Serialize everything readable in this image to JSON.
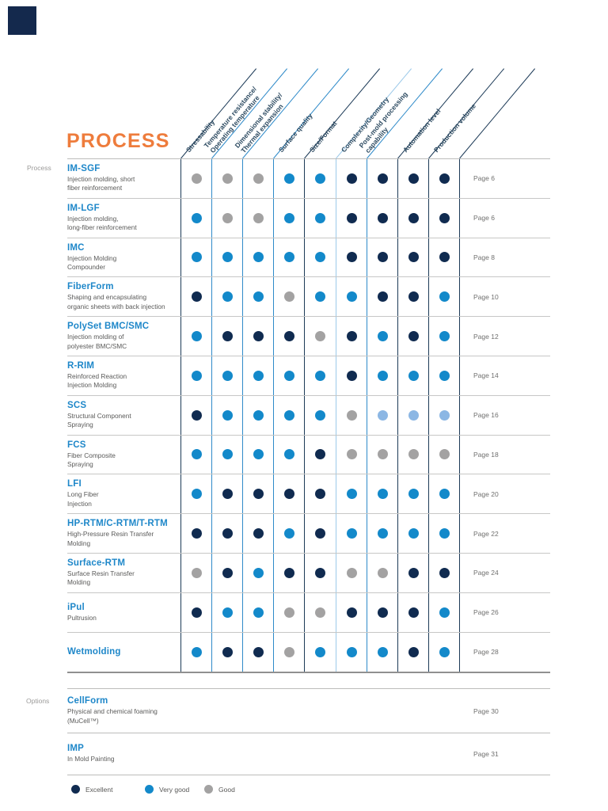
{
  "header": {
    "title": "PROCESS"
  },
  "sections": {
    "process_label": "Process",
    "options_label": "Options"
  },
  "columns": [
    {
      "line1": "Stressability",
      "line2": ""
    },
    {
      "line1": "Temperature resistance/",
      "line2": "Operating temperature"
    },
    {
      "line1": "Dimensional stability/",
      "line2": "Thermal expansion"
    },
    {
      "line1": "Surface quality",
      "line2": ""
    },
    {
      "line1": "Size/Format",
      "line2": ""
    },
    {
      "line1": "Complexity/Geometry",
      "line2": ""
    },
    {
      "line1": "Post-mold processing",
      "line2": "capability"
    },
    {
      "line1": "Automation level",
      "line2": ""
    },
    {
      "line1": "Production volume",
      "line2": ""
    }
  ],
  "colors": {
    "accent_orange": "#ee7c3c",
    "excellent": "#102b50",
    "very_good": "#1389ca",
    "good": "#a3a2a2",
    "fair": "#8cb7e4",
    "title_blue": "#1e87c9",
    "line_dark": "#1c3a57",
    "line_blue": "#2e8ac9",
    "line_light": "#9cc9e9"
  },
  "grid_line_colors": [
    "dark",
    "blue",
    "blue",
    "blue",
    "dark",
    "light",
    "blue",
    "dark",
    "dark",
    "dark"
  ],
  "processes": [
    {
      "name": "IM-SGF",
      "desc": "Injection molding, short\nfiber reinforcement",
      "page": "Page 6",
      "ratings": [
        "good",
        "good",
        "good",
        "very_good",
        "very_good",
        "excellent",
        "excellent",
        "excellent",
        "excellent"
      ]
    },
    {
      "name": "IM-LGF",
      "desc": "Injection molding,\nlong-fiber reinforcement",
      "page": "Page 6",
      "ratings": [
        "very_good",
        "good",
        "good",
        "very_good",
        "very_good",
        "excellent",
        "excellent",
        "excellent",
        "excellent"
      ]
    },
    {
      "name": "IMC",
      "desc": "Injection Molding\nCompounder",
      "page": "Page 8",
      "ratings": [
        "very_good",
        "very_good",
        "very_good",
        "very_good",
        "very_good",
        "excellent",
        "excellent",
        "excellent",
        "excellent"
      ]
    },
    {
      "name": "FiberForm",
      "desc": "Shaping and encapsulating\norganic sheets with back injection",
      "page": "Page 10",
      "ratings": [
        "excellent",
        "very_good",
        "very_good",
        "good",
        "very_good",
        "very_good",
        "excellent",
        "excellent",
        "very_good"
      ]
    },
    {
      "name": "PolySet BMC/SMC",
      "desc": "Injection molding of\npolyester BMC/SMC",
      "page": "Page 12",
      "ratings": [
        "very_good",
        "excellent",
        "excellent",
        "excellent",
        "good",
        "excellent",
        "very_good",
        "excellent",
        "very_good"
      ]
    },
    {
      "name": "R-RIM",
      "desc": "Reinforced Reaction\nInjection Molding",
      "page": "Page 14",
      "ratings": [
        "very_good",
        "very_good",
        "very_good",
        "very_good",
        "very_good",
        "excellent",
        "very_good",
        "very_good",
        "very_good"
      ]
    },
    {
      "name": "SCS",
      "desc": "Structural Component\nSpraying",
      "page": "Page 16",
      "ratings": [
        "excellent",
        "very_good",
        "very_good",
        "very_good",
        "very_good",
        "good",
        "fair",
        "fair",
        "fair"
      ]
    },
    {
      "name": "FCS",
      "desc": "Fiber Composite\nSpraying",
      "page": "Page 18",
      "ratings": [
        "very_good",
        "very_good",
        "very_good",
        "very_good",
        "excellent",
        "good",
        "good",
        "good",
        "good"
      ]
    },
    {
      "name": "LFI",
      "desc": "Long Fiber\nInjection",
      "page": "Page 20",
      "ratings": [
        "very_good",
        "excellent",
        "excellent",
        "excellent",
        "excellent",
        "very_good",
        "very_good",
        "very_good",
        "very_good"
      ]
    },
    {
      "name": "HP-RTM/C-RTM/T-RTM",
      "desc": "High-Pressure Resin Transfer\nMolding",
      "page": "Page 22",
      "ratings": [
        "excellent",
        "excellent",
        "excellent",
        "very_good",
        "excellent",
        "very_good",
        "very_good",
        "very_good",
        "very_good"
      ]
    },
    {
      "name": "Surface-RTM",
      "desc": "Surface Resin Transfer\nMolding",
      "page": "Page 24",
      "ratings": [
        "good",
        "excellent",
        "very_good",
        "excellent",
        "excellent",
        "good",
        "good",
        "excellent",
        "excellent"
      ]
    },
    {
      "name": "iPul",
      "desc": "Pultrusion",
      "page": "Page 26",
      "ratings": [
        "excellent",
        "very_good",
        "very_good",
        "good",
        "good",
        "excellent",
        "excellent",
        "excellent",
        "very_good"
      ]
    },
    {
      "name": "Wetmolding",
      "desc": "",
      "page": "Page 28",
      "ratings": [
        "very_good",
        "excellent",
        "excellent",
        "good",
        "very_good",
        "very_good",
        "very_good",
        "excellent",
        "very_good"
      ]
    }
  ],
  "options": [
    {
      "name": "CellForm",
      "desc": "Physical and chemical foaming\n(MuCell™)",
      "page": "Page 30"
    },
    {
      "name": "IMP",
      "desc": "In Mold Painting",
      "page": "Page 31"
    }
  ],
  "legend": [
    {
      "label": "Excellent",
      "key": "excellent"
    },
    {
      "label": "Very good",
      "key": "very_good"
    },
    {
      "label": "Good",
      "key": "good"
    }
  ]
}
